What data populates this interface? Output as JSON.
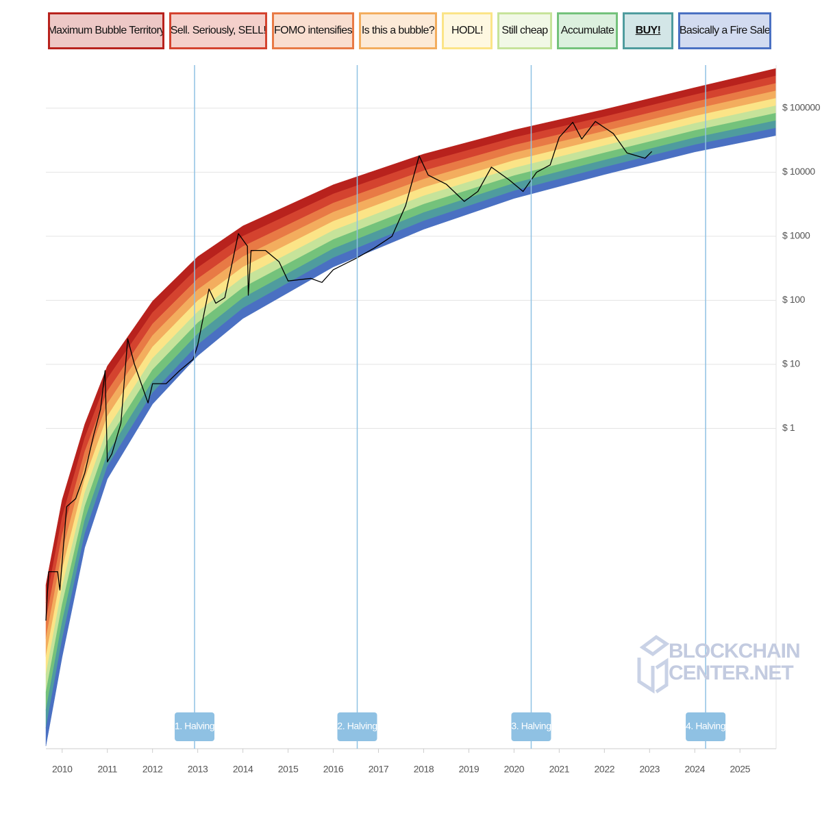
{
  "chart_data": {
    "type": "rainbow",
    "yscale": "log",
    "grid": true,
    "xlim": [
      2009.64,
      2025.8
    ],
    "xticks": [
      2010,
      2011,
      2012,
      2013,
      2014,
      2015,
      2016,
      2017,
      2018,
      2019,
      2020,
      2021,
      2022,
      2023,
      2024,
      2025
    ],
    "ylim": [
      1e-05,
      470000
    ],
    "yticks": [
      {
        "value": 1,
        "label": "$ 1"
      },
      {
        "value": 10,
        "label": "$ 10"
      },
      {
        "value": 100,
        "label": "$ 100"
      },
      {
        "value": 1000,
        "label": "$ 1000"
      },
      {
        "value": 10000,
        "label": "$ 10000"
      },
      {
        "value": 100000,
        "label": "$ 100000"
      }
    ],
    "bands": [
      {
        "name": "Maximum Bubble Territory",
        "color": "#b8221d"
      },
      {
        "name": "Sell. Seriously, SELL!",
        "color": "#d4432f"
      },
      {
        "name": "FOMO intensifies",
        "color": "#e87a45"
      },
      {
        "name": "Is this a bubble?",
        "color": "#f3ad5e"
      },
      {
        "name": "HODL!",
        "color": "#fbe487"
      },
      {
        "name": "Still cheap",
        "color": "#c6e39a"
      },
      {
        "name": "Accumulate",
        "color": "#74c27b"
      },
      {
        "name": "BUY!",
        "color": "#4f9c9e",
        "bold": true
      },
      {
        "name": "Basically a Fire Sale",
        "color": "#4a70c2"
      }
    ],
    "rainbow": {
      "x": [
        2009.64,
        2010,
        2010.5,
        2011,
        2012,
        2013,
        2014,
        2016,
        2018,
        2020,
        2022,
        2024,
        2025.8
      ],
      "upper": [
        0.0036,
        0.077,
        1.16,
        9.4,
        97,
        480,
        1450,
        6360,
        19200,
        45500,
        95300,
        209000,
        417000
      ],
      "lower": [
        1.1e-05,
        0.00027,
        0.0138,
        0.162,
        2.4,
        13.6,
        52,
        332,
        1285,
        3890,
        9200,
        20700,
        37400
      ]
    },
    "x": [
      2009.64,
      2009.7,
      2009.9,
      2009.95,
      2010.1,
      2010.3,
      2010.5,
      2010.7,
      2010.85,
      2010.95,
      2011.0,
      2011.1,
      2011.3,
      2011.45,
      2011.6,
      2011.75,
      2011.9,
      2012.0,
      2012.3,
      2012.6,
      2012.9,
      2013.0,
      2013.25,
      2013.4,
      2013.6,
      2013.9,
      2014.1,
      2014.12,
      2014.18,
      2014.5,
      2014.8,
      2015.0,
      2015.5,
      2015.75,
      2016.0,
      2016.5,
      2016.9,
      2017.3,
      2017.6,
      2017.9,
      2018.1,
      2018.5,
      2018.9,
      2019.2,
      2019.5,
      2019.9,
      2020.2,
      2020.5,
      2020.8,
      2021.0,
      2021.3,
      2021.5,
      2021.8,
      2022.2,
      2022.5,
      2022.9,
      2023.05
    ],
    "values": [
      0.001,
      0.0058,
      0.0058,
      0.003,
      0.06,
      0.08,
      0.2,
      0.8,
      2,
      8,
      0.3,
      0.4,
      1.2,
      25,
      10,
      5,
      2.5,
      5,
      5,
      8,
      12,
      20,
      150,
      90,
      110,
      1100,
      700,
      120,
      600,
      600,
      400,
      200,
      220,
      190,
      300,
      450,
      650,
      1000,
      3000,
      18000,
      9000,
      6500,
      3500,
      5000,
      12000,
      7500,
      5000,
      10000,
      13000,
      35000,
      60000,
      33000,
      62000,
      40000,
      20000,
      16500,
      21000
    ],
    "line_color": "#000000",
    "halvings": [
      {
        "x": 2012.93,
        "label": "1. Halving"
      },
      {
        "x": 2016.53,
        "label": "2. Halving"
      },
      {
        "x": 2020.38,
        "label": "3. Halving"
      },
      {
        "x": 2024.24,
        "label": "4. Halving"
      }
    ],
    "watermark": [
      "BLOCKCHAIN",
      "CENTER.NET"
    ]
  }
}
